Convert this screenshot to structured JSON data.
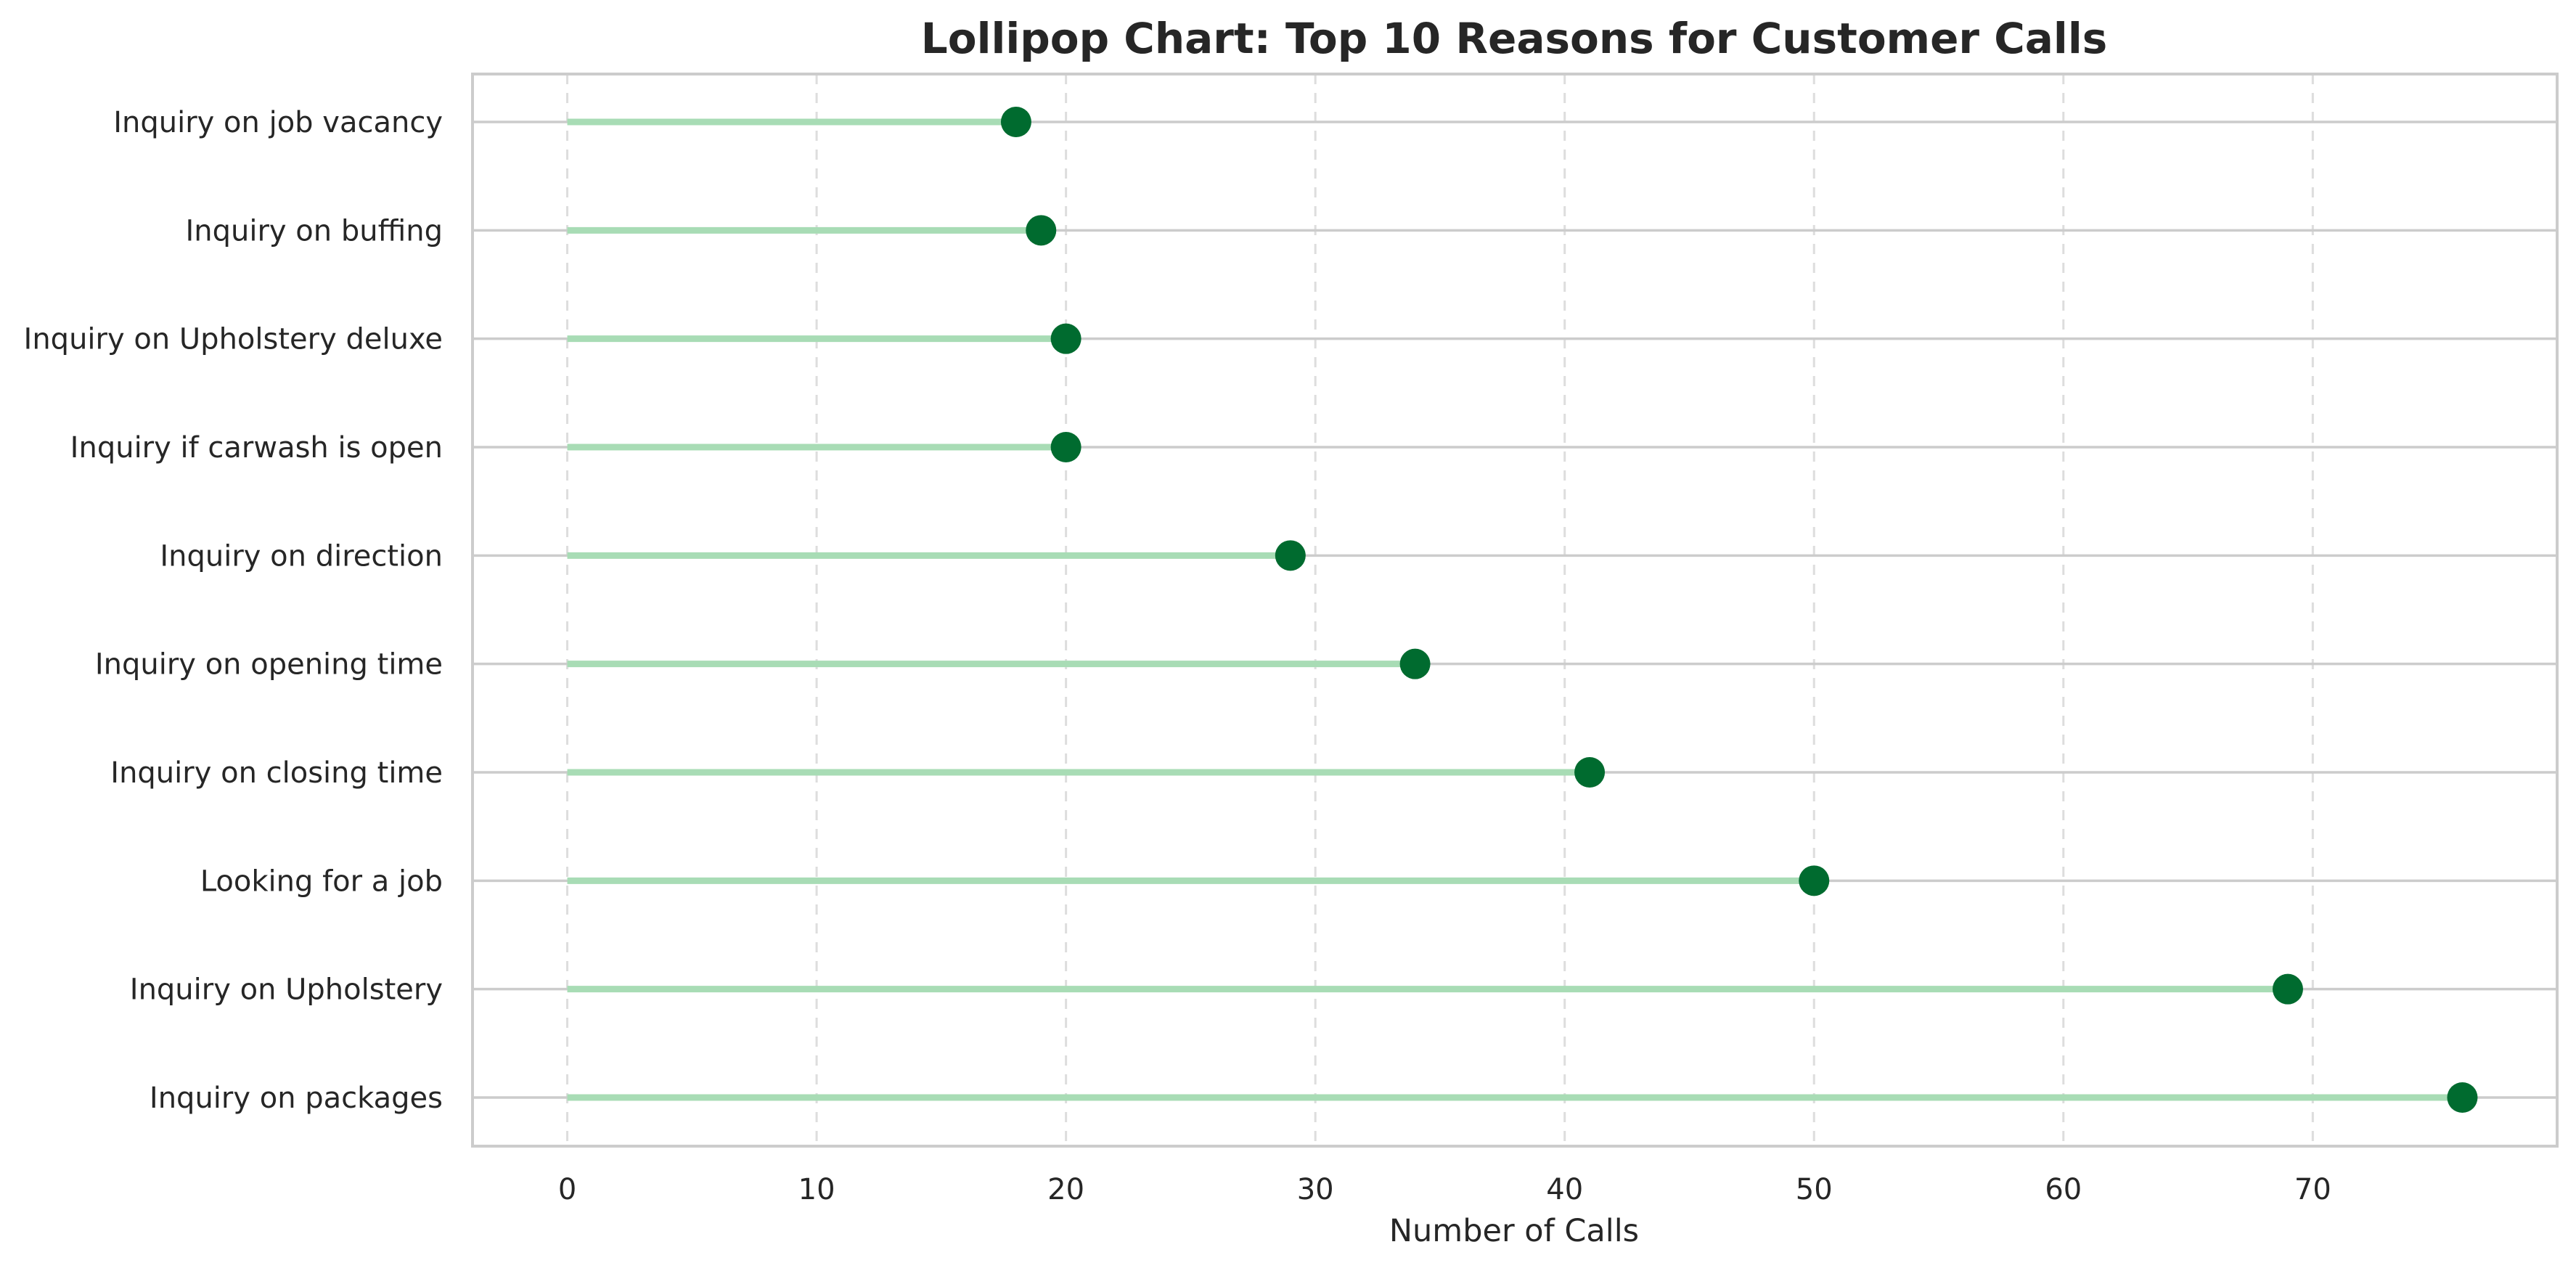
{
  "colors": {
    "stem": "#a8dcb5",
    "marker": "#006b2f",
    "hgrid": "#cccccc",
    "vgrid": "#dddddd",
    "frame": "#cccccc",
    "text": "#262626"
  },
  "chart_data": {
    "type": "lollipop",
    "orientation": "horizontal",
    "title": "Lollipop Chart: Top 10 Reasons for Customer Calls",
    "xlabel": "Number of Calls",
    "ylabel": "",
    "xlim": [
      -3.8,
      79.8
    ],
    "xticks": [
      0,
      10,
      20,
      30,
      40,
      50,
      60,
      70
    ],
    "grid": {
      "x": "dashed",
      "y": "solid"
    },
    "categories": [
      "Inquiry on job vacancy",
      "Inquiry on buffing",
      "Inquiry on Upholstery deluxe",
      "Inquiry if carwash is open",
      "Inquiry on direction",
      "Inquiry on opening time",
      "Inquiry on closing time",
      "Looking for a job",
      "Inquiry on Upholstery",
      "Inquiry on packages"
    ],
    "values": [
      18,
      19,
      20,
      20,
      29,
      34,
      41,
      50,
      69,
      76
    ]
  }
}
